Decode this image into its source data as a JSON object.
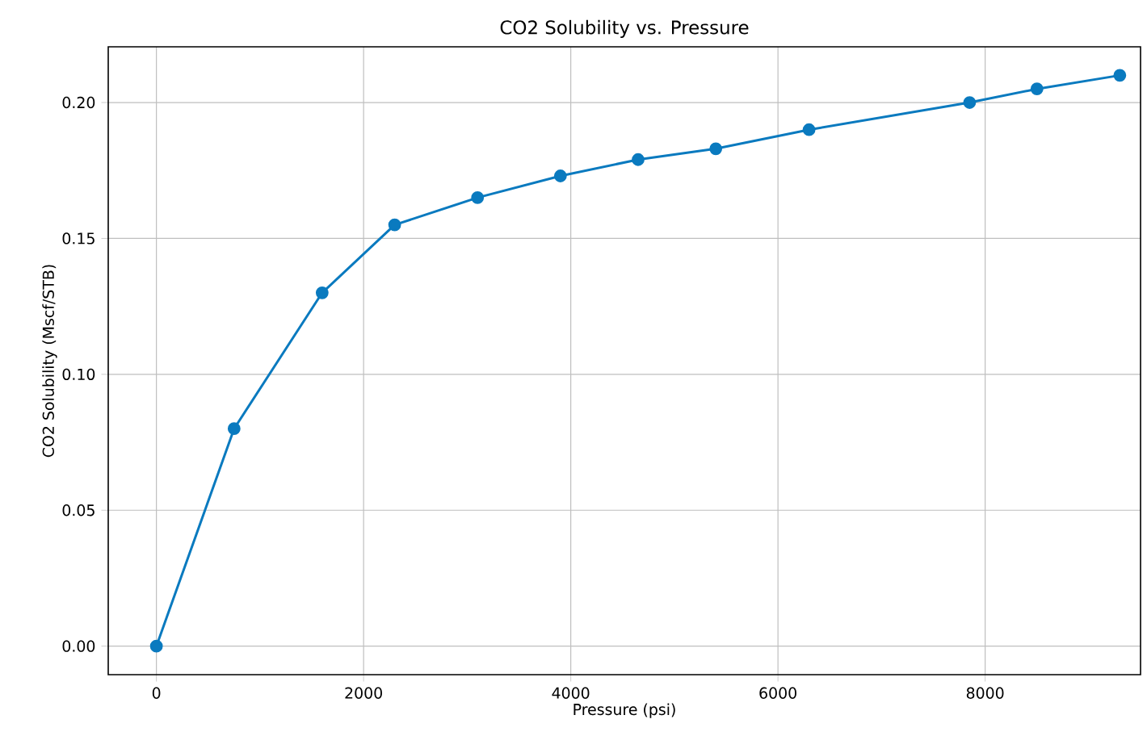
{
  "chart_data": {
    "type": "line",
    "title": "CO2 Solubility vs. Pressure",
    "xlabel": "Pressure (psi)",
    "ylabel": "CO2 Solubility (Mscf/STB)",
    "x": [
      0,
      750,
      1600,
      2300,
      3100,
      3900,
      4650,
      5400,
      6300,
      7850,
      8500,
      9300
    ],
    "series": [
      {
        "color": "#0a7abf",
        "values": [
          0,
          0.08,
          0.13,
          0.155,
          0.165,
          0.173,
          0.179,
          0.183,
          0.19,
          0.2,
          0.205,
          0.21
        ]
      }
    ],
    "xlim": [
      -465,
      9500
    ],
    "ylim": [
      -0.0105,
      0.2205
    ],
    "xticks": [
      0,
      2000,
      4000,
      6000,
      8000
    ],
    "yticks": [
      {
        "value": 0,
        "label": "0.00"
      },
      {
        "value": 0.05,
        "label": "0.05"
      },
      {
        "value": 0.1,
        "label": "0.10"
      },
      {
        "value": 0.15,
        "label": "0.15"
      },
      {
        "value": 0.2,
        "label": "0.20"
      }
    ],
    "grid": true,
    "marker": "circle",
    "line_style": "solid"
  }
}
